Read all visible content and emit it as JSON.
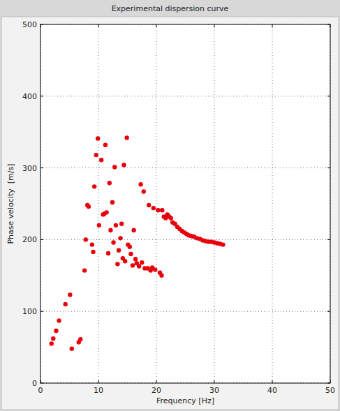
{
  "chart_data": {
    "type": "scatter",
    "title": "Experimental dispersion curve",
    "x_label": "Frequency [Hz]",
    "y_label": "Phase velocity  [m/s]",
    "x": [
      1.9,
      2.2,
      2.7,
      3.2,
      4.3,
      5.1,
      5.4,
      6.6,
      6.9,
      7.6,
      7.8,
      8.1,
      8.3,
      8.9,
      9.1,
      9.3,
      9.6,
      9.9,
      10.1,
      10.5,
      10.8,
      11.0,
      11.2,
      11.4,
      11.7,
      11.9,
      12.1,
      12.4,
      12.6,
      12.8,
      13.0,
      13.3,
      13.5,
      13.8,
      14.0,
      14.2,
      14.4,
      14.6,
      14.9,
      15.1,
      15.4,
      15.6,
      15.9,
      16.1,
      16.4,
      16.6,
      17.0,
      17.3,
      17.5,
      17.8,
      18.0,
      18.5,
      18.7,
      19.0,
      19.3,
      19.5,
      19.8,
      20.3,
      20.6,
      20.9,
      21.0,
      21.3,
      21.6,
      21.9,
      22.2,
      22.5,
      22.8,
      23.2,
      23.6,
      24.0,
      24.4,
      24.8,
      25.2,
      25.6,
      26.0,
      26.5,
      27.0,
      27.5,
      28.0,
      28.5,
      29.0,
      29.5,
      30.0,
      30.5,
      31.0,
      31.5
    ],
    "values": [
      55,
      62,
      73,
      87,
      110,
      123,
      48,
      57,
      61,
      157,
      200,
      248,
      246,
      193,
      183,
      274,
      318,
      341,
      220,
      311,
      235,
      236,
      332,
      238,
      181,
      279,
      213,
      252,
      196,
      301,
      220,
      166,
      185,
      202,
      222,
      174,
      304,
      170,
      342,
      193,
      190,
      180,
      164,
      213,
      173,
      167,
      163,
      277,
      168,
      267,
      160,
      160,
      248,
      157,
      161,
      244,
      158,
      241,
      154,
      150,
      241,
      232,
      230,
      235,
      232,
      230,
      224,
      222,
      218,
      215,
      212,
      210,
      208,
      206,
      205,
      204,
      202,
      201,
      199,
      198,
      197,
      197,
      196,
      195,
      194,
      193
    ],
    "color": "#e8000b",
    "marker": "circle",
    "grid": true,
    "xlim": [
      0,
      50
    ],
    "xticks": [
      0,
      10,
      20,
      30,
      40,
      50
    ],
    "ylim": [
      0,
      500
    ],
    "yticks": [
      0,
      100,
      200,
      300,
      400,
      500
    ]
  }
}
